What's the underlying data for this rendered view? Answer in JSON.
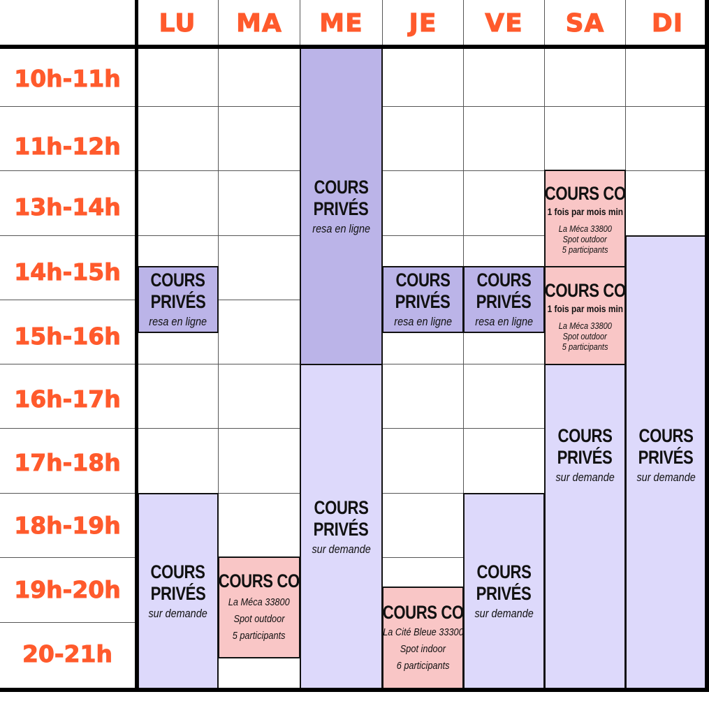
{
  "days": [
    "LU",
    "MA",
    "ME",
    "JE",
    "VE",
    "SA",
    "DI"
  ],
  "slots": [
    "10h-11h",
    "11h-12h",
    "13h-14h",
    "14h-15h",
    "15h-16h",
    "16h-17h",
    "17h-18h",
    "18h-19h",
    "19h-20h",
    "20-21h"
  ],
  "colors": {
    "accent": "#ff5a2c",
    "prive_dark": "#bbb4e8",
    "prive_light": "#ddd9fb",
    "cours_co": "#f9c6c6"
  },
  "blocks": {
    "lu_online": {
      "title1": "COURS",
      "title2": "PRIVÉS",
      "sub": "resa en ligne"
    },
    "lu_demand": {
      "title1": "COURS",
      "title2": "PRIVÉS",
      "sub": "sur demande"
    },
    "ma_co": {
      "title": "COURS CO",
      "line1": "La Méca 33800",
      "line2": "Spot outdoor",
      "line3": "5 participants"
    },
    "me_online": {
      "title1": "COURS",
      "title2": "PRIVÉS",
      "sub": "resa en ligne"
    },
    "me_demand": {
      "title1": "COURS",
      "title2": "PRIVÉS",
      "sub": "sur demande"
    },
    "je_online": {
      "title1": "COURS",
      "title2": "PRIVÉS",
      "sub": "resa en ligne"
    },
    "je_co": {
      "title": "COURS CO",
      "line1": "La Cité Bleue 33300",
      "line2": "Spot indoor",
      "line3": "6 participants"
    },
    "ve_online": {
      "title1": "COURS",
      "title2": "PRIVÉS",
      "sub": "resa en ligne"
    },
    "ve_demand": {
      "title1": "COURS",
      "title2": "PRIVÉS",
      "sub": "sur demande"
    },
    "sa_co1": {
      "title": "COURS CO",
      "freq": "1 fois par mois min",
      "line1": "La Méca 33800",
      "line2": "Spot outdoor",
      "line3": "5 participants"
    },
    "sa_co2": {
      "title": "COURS CO",
      "freq": "1 fois par mois min",
      "line1": "La Méca 33800",
      "line2": "Spot outdoor",
      "line3": "5 participants"
    },
    "sa_demand": {
      "title1": "COURS",
      "title2": "PRIVÉS",
      "sub": "sur demande"
    },
    "di_demand": {
      "title1": "COURS",
      "title2": "PRIVÉS",
      "sub": "sur demande"
    }
  }
}
